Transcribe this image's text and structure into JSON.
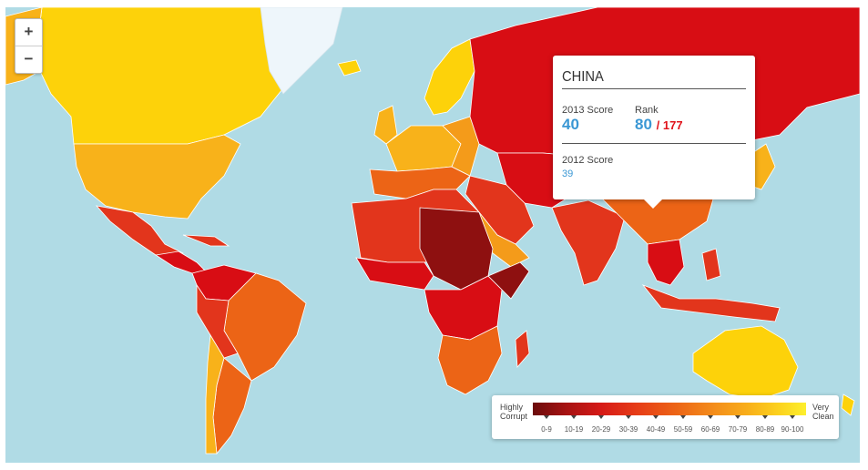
{
  "map": {
    "title": "",
    "zoom_in_label": "+",
    "zoom_out_label": "−",
    "colors": {
      "ocean": "#b0dbe5",
      "very_corrupt": "#8e1010",
      "red": "#d80d14",
      "red_orange": "#e2351c",
      "orange": "#ec6416",
      "light_orange": "#f49b1a",
      "gold": "#f8b21a",
      "yellow": "#fdd20a",
      "greenland": "#eef6fb"
    },
    "selected_country": "China"
  },
  "tooltip": {
    "country": "CHINA",
    "score_2013_label": "2013 Score",
    "score_2013": "40",
    "rank_label": "Rank",
    "rank": "80",
    "rank_total": "/ 177",
    "score_2012_label": "2012 Score",
    "score_2012": "39"
  },
  "legend": {
    "left_label_line1": "Highly",
    "left_label_line2": "Corrupt",
    "right_label_line1": "Very",
    "right_label_line2": "Clean",
    "ranges": [
      "0-9",
      "10-19",
      "20-29",
      "30-39",
      "40-49",
      "50-59",
      "60-69",
      "70-79",
      "80-89",
      "90-100"
    ]
  }
}
